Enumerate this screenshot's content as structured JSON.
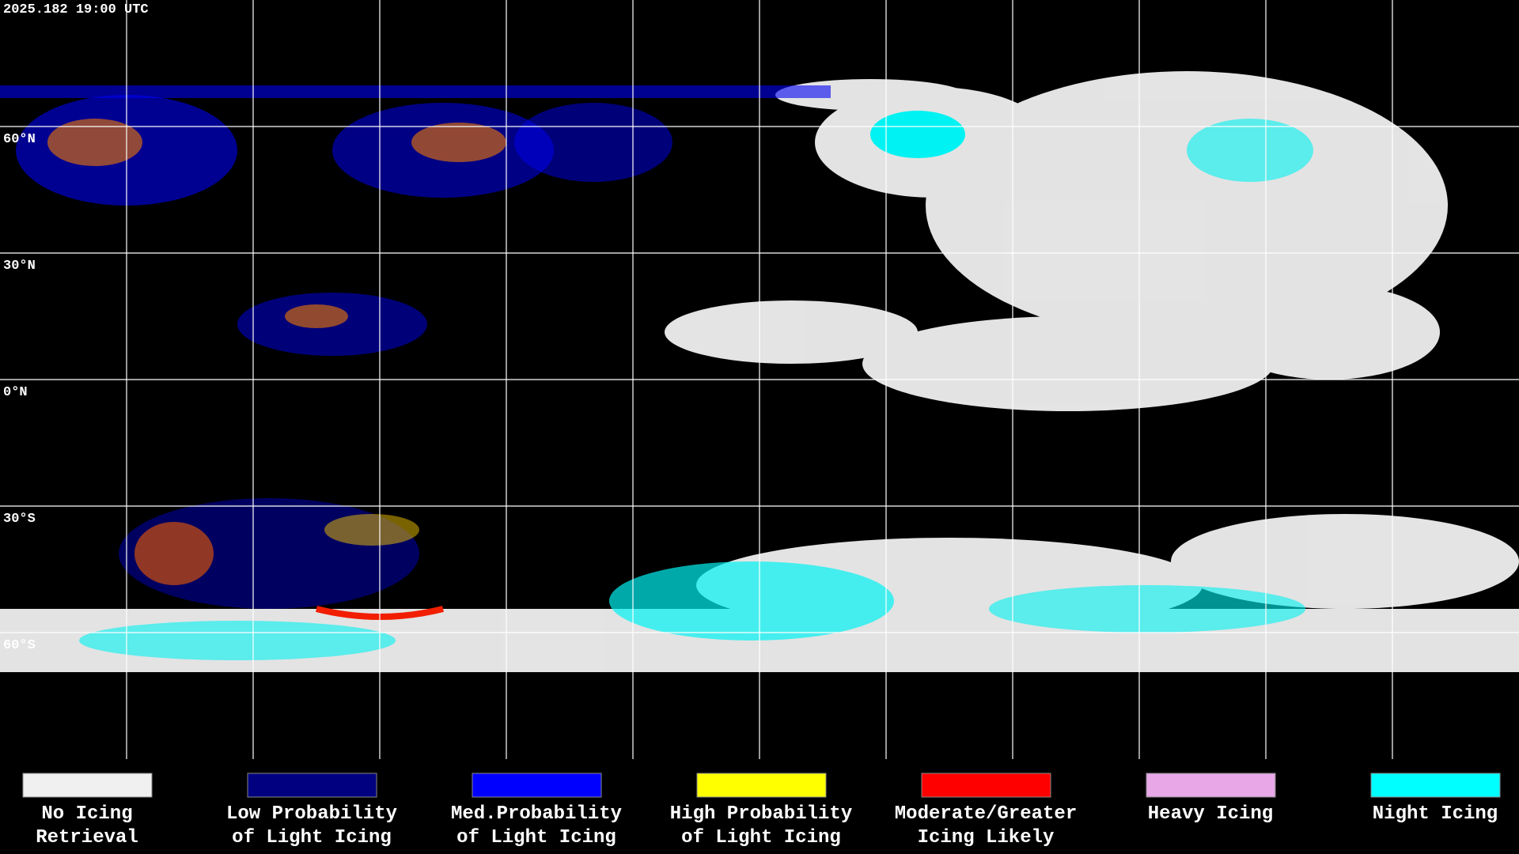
{
  "header": {
    "timestamp": "2025.182 19:00 UTC"
  },
  "lat_labels": [
    "60°N",
    "30°N",
    "0°N",
    "30°S",
    "60°S"
  ],
  "legend": [
    {
      "lines": [
        "No Icing",
        "Retrieval"
      ],
      "color": "#f0f0f0"
    },
    {
      "lines": [
        "Low Probability",
        "of Light Icing"
      ],
      "color": "#000080"
    },
    {
      "lines": [
        "Med.Probability",
        "of Light Icing"
      ],
      "color": "#0000ff"
    },
    {
      "lines": [
        "High Probability",
        "of Light Icing"
      ],
      "color": "#ffff00"
    },
    {
      "lines": [
        "Moderate/Greater",
        "Icing Likely"
      ],
      "color": "#ff0000"
    },
    {
      "lines": [
        "Heavy Icing"
      ],
      "color": "#e8a8e8"
    },
    {
      "lines": [
        "Night Icing"
      ],
      "color": "#00ffff"
    }
  ]
}
